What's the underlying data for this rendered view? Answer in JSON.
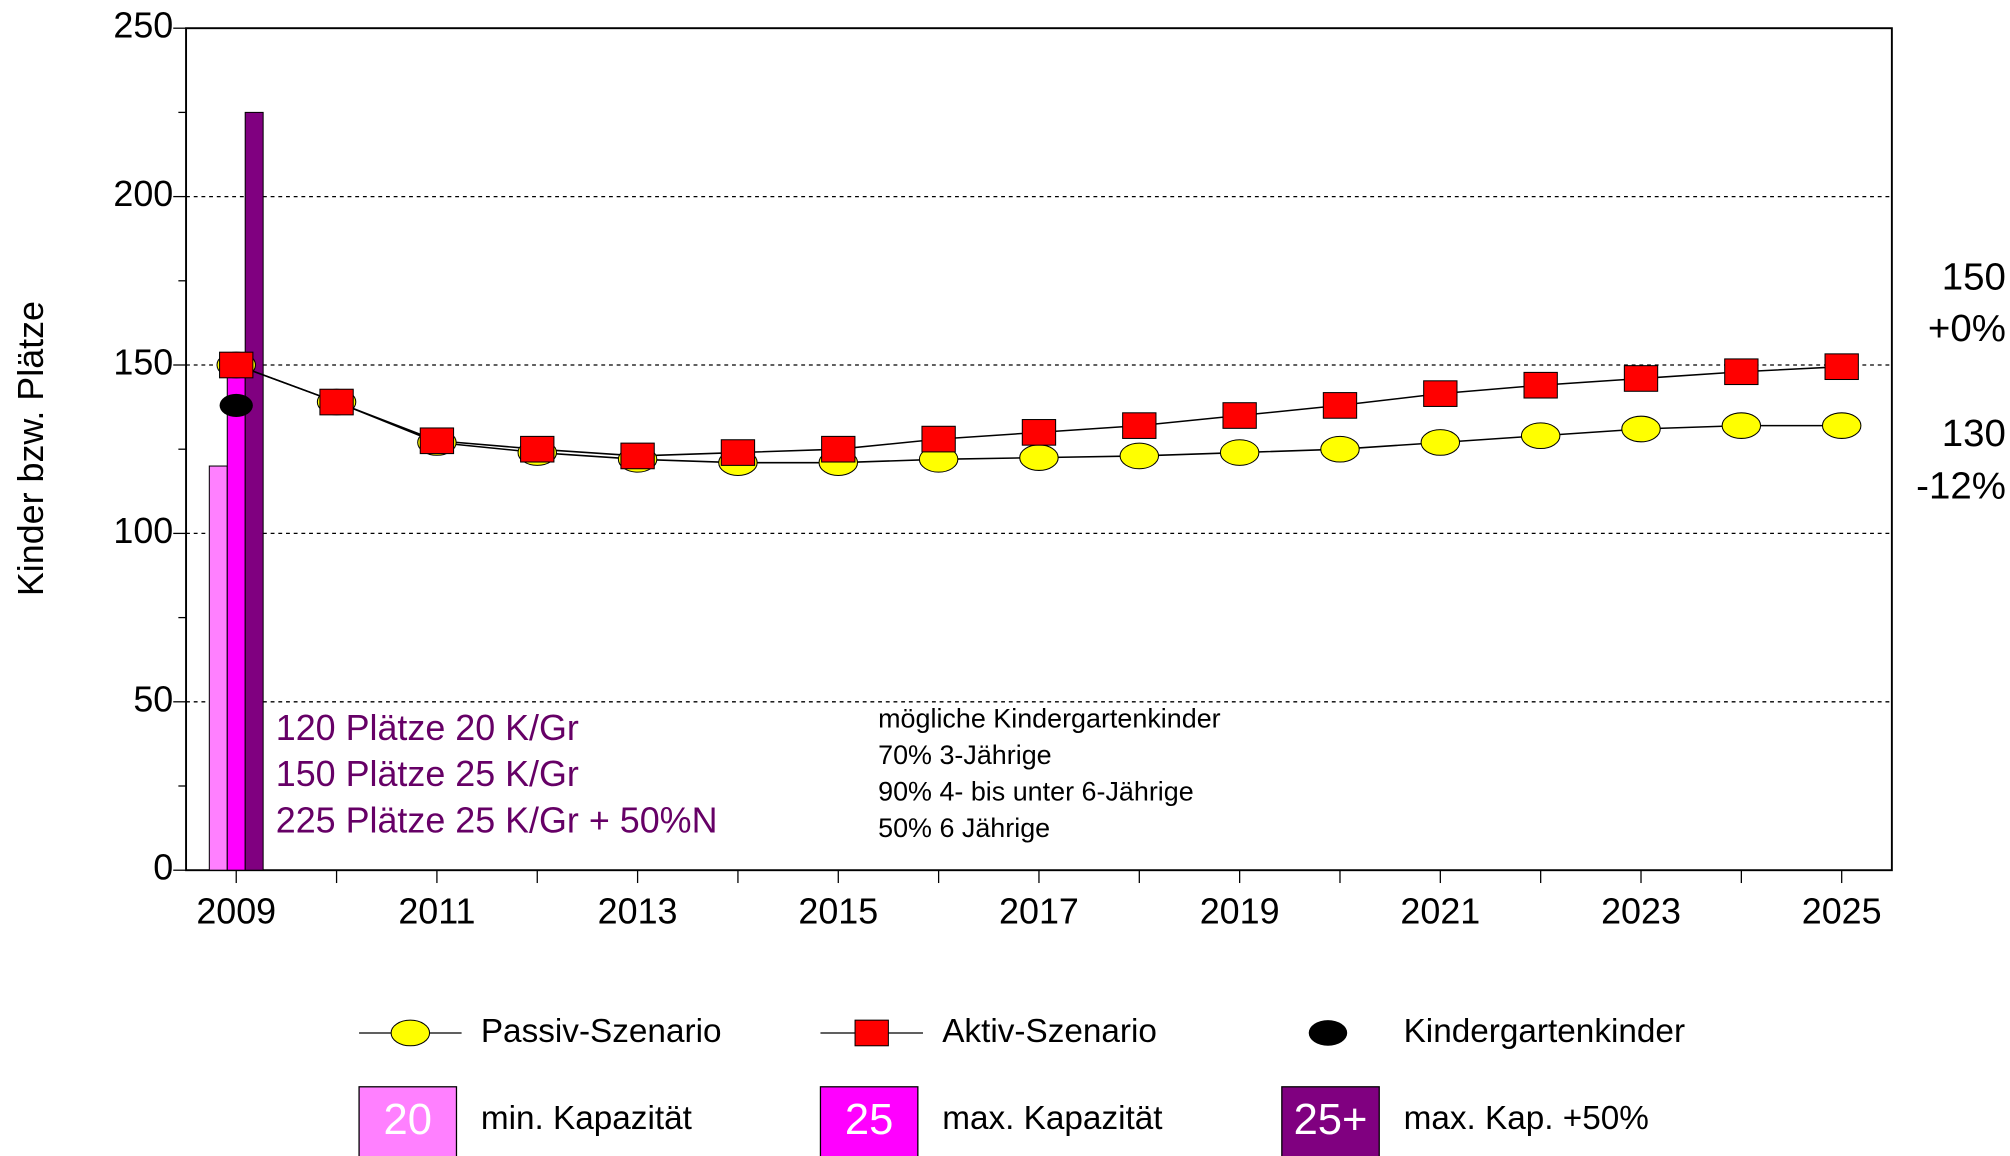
{
  "chart_data": {
    "type": "line",
    "ylabel": "Kinder bzw. Plätze",
    "x": [
      2009,
      2010,
      2011,
      2012,
      2013,
      2014,
      2015,
      2016,
      2017,
      2018,
      2019,
      2020,
      2021,
      2022,
      2023,
      2024,
      2025
    ],
    "series": [
      {
        "name": "Passiv-Szenario",
        "color": "#ffff00",
        "marker": "ellipse",
        "values": [
          150,
          139,
          127,
          124,
          122,
          121,
          121,
          122,
          122.5,
          123,
          124,
          125,
          127,
          129,
          131,
          132,
          132
        ]
      },
      {
        "name": "Aktiv-Szenario",
        "color": "#ff0000",
        "marker": "square",
        "values": [
          150,
          139,
          127.5,
          125,
          123,
          124,
          125,
          128,
          130,
          132,
          135,
          138,
          141.5,
          144,
          146,
          148,
          149.5
        ]
      },
      {
        "name": "Kindergartenkinder",
        "color": "#000000",
        "marker": "dot",
        "values": [
          138,
          null,
          null,
          null,
          null,
          null,
          null,
          null,
          null,
          null,
          null,
          null,
          null,
          null,
          null,
          null,
          null
        ]
      }
    ],
    "bars": [
      {
        "name": "min. Kapazität",
        "swatch": "20",
        "color": "#ff80ff",
        "value": 120
      },
      {
        "name": "max. Kapazität",
        "swatch": "25",
        "color": "#ff00ff",
        "value": 150
      },
      {
        "name": "max. Kap. +50%",
        "swatch": "25+",
        "color": "#800080",
        "value": 225
      }
    ],
    "xlim": [
      2008.5,
      2025.5
    ],
    "xticks": [
      2009,
      2011,
      2013,
      2015,
      2017,
      2019,
      2021,
      2023,
      2025
    ],
    "xminorticks": [
      2010,
      2012,
      2014,
      2016,
      2018,
      2020,
      2022,
      2024
    ],
    "ylim": [
      0,
      250
    ],
    "yticks": [
      0,
      50,
      100,
      150,
      200,
      250
    ],
    "yminorticks": [
      25,
      75,
      125,
      175,
      225
    ],
    "grid": true,
    "capacity_notes": [
      "120 Plätze 20 K/Gr",
      "150 Plätze 25 K/Gr",
      "225 Plätze 25 K/Gr + 50%N"
    ],
    "notes": [
      "mögliche Kindergartenkinder",
      "70% 3-Jährige",
      "90% 4- bis unter 6-Jährige",
      "50% 6 Jährige"
    ],
    "end_labels": [
      "150",
      "+0%",
      "130",
      "-12%"
    ]
  }
}
